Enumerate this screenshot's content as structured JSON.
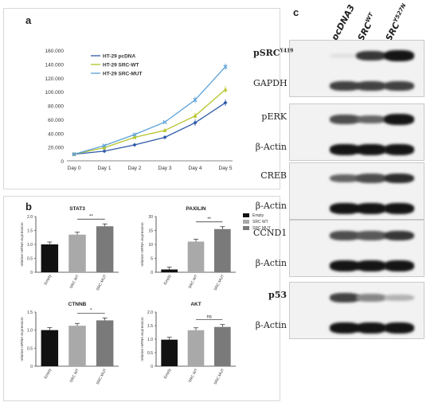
{
  "panels": {
    "a": "a",
    "b": "b",
    "c": "c"
  },
  "chart_data": [
    {
      "type": "line",
      "x": [
        "Day 0",
        "Day 1",
        "Day 2",
        "Day 3",
        "Day 4",
        "Day 5"
      ],
      "ylim": [
        0,
        160000
      ],
      "yticks": [
        "0",
        "20.000",
        "40.000",
        "60.000",
        "80.000",
        "100.000",
        "120.000",
        "140.000",
        "160.000"
      ],
      "legend_position": "top-left",
      "series": [
        {
          "name": "HT-29 pcDNA",
          "color": "#2e5aa8",
          "marker": "diamond",
          "values": [
            9500,
            14000,
            23000,
            34000,
            55000,
            84000
          ]
        },
        {
          "name": "HT-29 SRC-WT",
          "color": "#b5c42a",
          "marker": "triangle",
          "values": [
            9500,
            19000,
            34000,
            44000,
            65000,
            103000
          ]
        },
        {
          "name": "HT-29 SRC-MUT",
          "color": "#5aa0d8",
          "marker": "x",
          "values": [
            9500,
            22000,
            38000,
            56000,
            88000,
            136000
          ]
        }
      ]
    },
    {
      "type": "bar",
      "title": "STAT3",
      "ylabel": "relative mRNA expression",
      "ylim": [
        0,
        2.0
      ],
      "yticks": [
        "0",
        "0.5",
        "1.0",
        "1.5",
        "2.0"
      ],
      "categories": [
        "Empty",
        "SRC WT",
        "SRC MUT"
      ],
      "values": [
        1.0,
        1.35,
        1.65
      ],
      "significance": "**"
    },
    {
      "type": "bar",
      "title": "PAXILIN",
      "ylabel": "relative mRNA expression",
      "ylim": [
        0,
        20
      ],
      "yticks": [
        "0",
        "5",
        "10",
        "15",
        "20"
      ],
      "categories": [
        "Empty",
        "SRC WT",
        "SRC MUT"
      ],
      "values": [
        1.0,
        11.0,
        15.5
      ],
      "significance": "**"
    },
    {
      "type": "bar",
      "title": "CTNNB",
      "ylabel": "relative mRNA expression",
      "ylim": [
        0,
        1.5
      ],
      "yticks": [
        "0",
        "0.5",
        "1.0",
        "1.5"
      ],
      "categories": [
        "Empty",
        "SRC WT",
        "SRC MUT"
      ],
      "values": [
        1.0,
        1.12,
        1.27
      ],
      "significance": "*"
    },
    {
      "type": "bar",
      "title": "AKT",
      "ylabel": "relative mRNA expression",
      "ylim": [
        0,
        2.0
      ],
      "yticks": [
        "0",
        "0.5",
        "1.0",
        "1.5",
        "2.0"
      ],
      "categories": [
        "Empty",
        "SRC WT",
        "SRC MUT"
      ],
      "values": [
        0.98,
        1.33,
        1.45
      ],
      "significance": "ns"
    }
  ],
  "bar_legend": [
    {
      "name": "Empty",
      "color": "#111111"
    },
    {
      "name": "SRC WT",
      "color": "#a9a9a9"
    },
    {
      "name": "SRC MUT",
      "color": "#7a7a7a"
    }
  ],
  "blot": {
    "columns": [
      "pcDNA3",
      "SRC",
      "SRC"
    ],
    "column_superscripts": [
      "",
      "WT",
      "Y527N"
    ],
    "groups": [
      {
        "rows": [
          {
            "label": "pSRC",
            "sup": "Y419",
            "bold": true,
            "intensity": [
              0.05,
              0.8,
              0.95
            ]
          },
          {
            "label": "GAPDH",
            "sup": "",
            "bold": false,
            "intensity": [
              0.75,
              0.75,
              0.75
            ]
          }
        ]
      },
      {
        "rows": [
          {
            "label": "pERK",
            "sup": "",
            "bold": false,
            "intensity": [
              0.7,
              0.6,
              0.95
            ]
          },
          {
            "label": "β-Actin",
            "sup": "",
            "bold": false,
            "intensity": [
              0.95,
              0.95,
              0.95
            ]
          }
        ]
      },
      {
        "rows": [
          {
            "label": "CREB",
            "sup": "",
            "bold": false,
            "intensity": [
              0.6,
              0.7,
              0.85
            ]
          },
          {
            "label": "β-Actin",
            "sup": "",
            "bold": false,
            "intensity": [
              0.95,
              0.95,
              0.95
            ]
          }
        ]
      },
      {
        "rows": [
          {
            "label": "CCND1",
            "sup": "",
            "bold": false,
            "intensity": [
              0.7,
              0.65,
              0.8
            ]
          },
          {
            "label": "β-Actin",
            "sup": "",
            "bold": false,
            "intensity": [
              0.95,
              0.95,
              0.95
            ]
          }
        ]
      },
      {
        "rows": [
          {
            "label": "p53",
            "sup": "",
            "bold": true,
            "intensity": [
              0.75,
              0.45,
              0.25
            ]
          },
          {
            "label": "β-Actin",
            "sup": "",
            "bold": false,
            "intensity": [
              0.95,
              0.95,
              0.95
            ]
          }
        ]
      }
    ]
  }
}
